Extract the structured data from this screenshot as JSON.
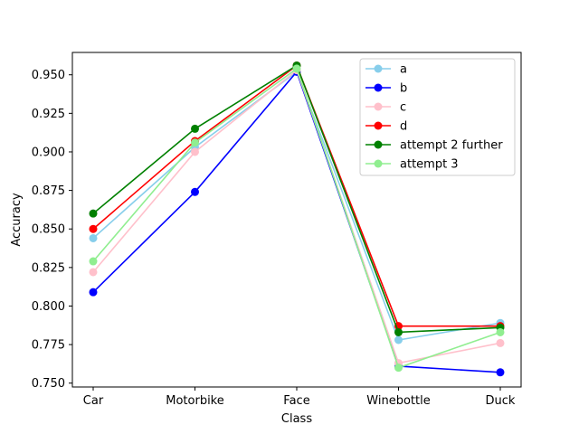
{
  "chart_data": {
    "type": "line",
    "title": "",
    "xlabel": "Class",
    "ylabel": "Accuracy",
    "categories": [
      "Car",
      "Motorbike",
      "Face",
      "Winebottle",
      "Duck"
    ],
    "ylim": [
      0.7475,
      0.9645
    ],
    "yticks": [
      0.75,
      0.775,
      0.8,
      0.825,
      0.85,
      0.875,
      0.9,
      0.925,
      0.95
    ],
    "ytick_labels": [
      "0.750",
      "0.775",
      "0.800",
      "0.825",
      "0.850",
      "0.875",
      "0.900",
      "0.925",
      "0.950"
    ],
    "grid": false,
    "legend_position": "top-right",
    "markers": "circle",
    "series": [
      {
        "name": "a",
        "color": "#87ceeb",
        "values": [
          0.844,
          0.903,
          0.952,
          0.778,
          0.789
        ]
      },
      {
        "name": "b",
        "color": "#0000ff",
        "values": [
          0.809,
          0.874,
          0.952,
          0.761,
          0.757
        ]
      },
      {
        "name": "c",
        "color": "#ffc0cb",
        "values": [
          0.822,
          0.9,
          0.953,
          0.763,
          0.776
        ]
      },
      {
        "name": "d",
        "color": "#ff0000",
        "values": [
          0.85,
          0.907,
          0.956,
          0.787,
          0.787
        ]
      },
      {
        "name": "attempt 2 further",
        "color": "#008000",
        "values": [
          0.86,
          0.915,
          0.956,
          0.783,
          0.786
        ]
      },
      {
        "name": "attempt 3",
        "color": "#90ee90",
        "values": [
          0.829,
          0.906,
          0.954,
          0.76,
          0.783
        ]
      }
    ]
  }
}
